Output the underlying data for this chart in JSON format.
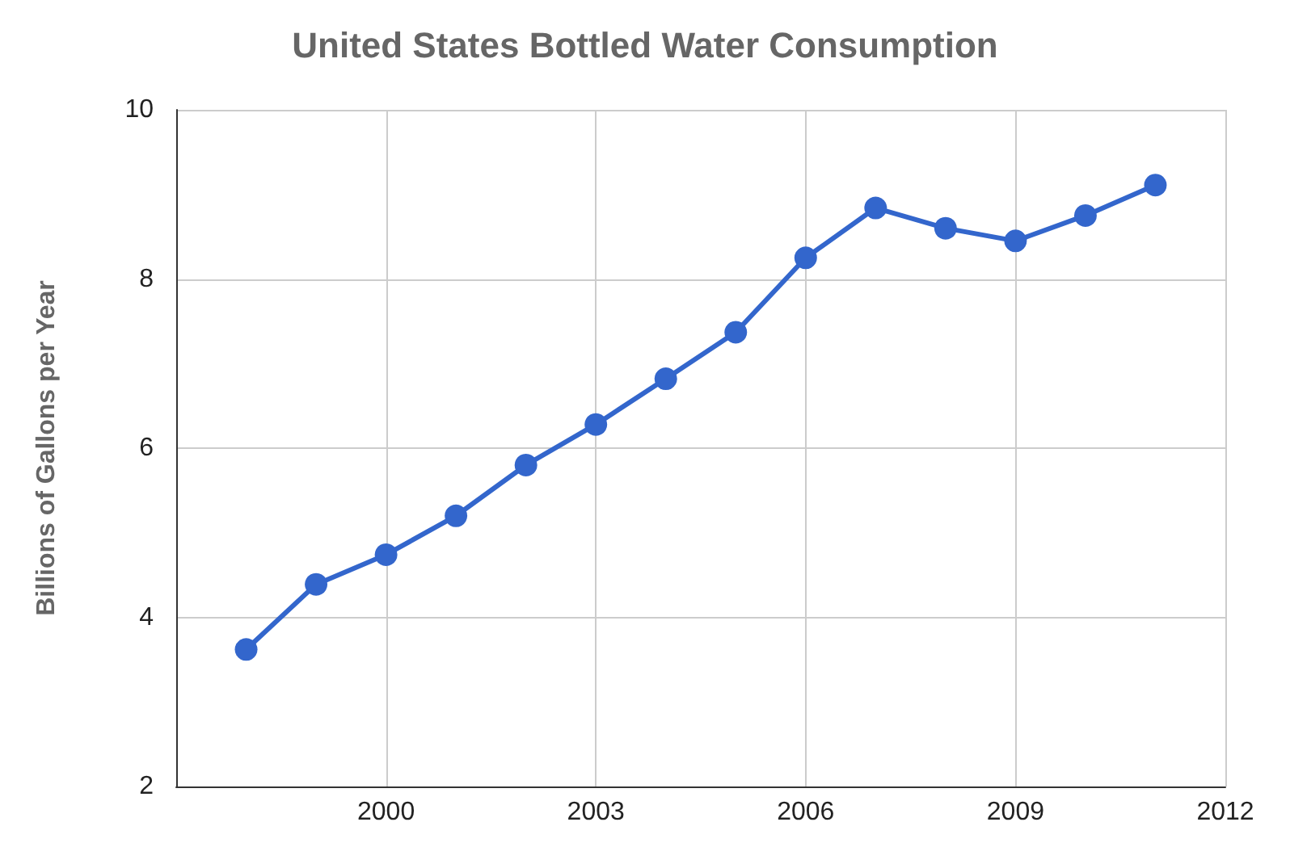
{
  "chart_data": {
    "type": "line",
    "title": "United States Bottled Water Consumption",
    "ylabel": "Billions of Gallons per Year",
    "x": [
      1998,
      1999,
      2000,
      2001,
      2002,
      2003,
      2004,
      2005,
      2006,
      2007,
      2008,
      2009,
      2010,
      2011
    ],
    "series": [
      {
        "color": "#3366cc",
        "values": [
          3.62,
          4.39,
          4.74,
          5.2,
          5.8,
          6.28,
          6.82,
          7.37,
          8.25,
          8.84,
          8.6,
          8.45,
          8.75,
          9.11
        ]
      }
    ],
    "xlim": [
      1997,
      2012
    ],
    "xticks": [
      2000,
      2003,
      2006,
      2009,
      2012
    ],
    "ylim": [
      2,
      10
    ],
    "yticks": [
      2,
      4,
      6,
      8,
      10
    ],
    "grid": true,
    "marker": "circle",
    "line_style": "solid"
  }
}
